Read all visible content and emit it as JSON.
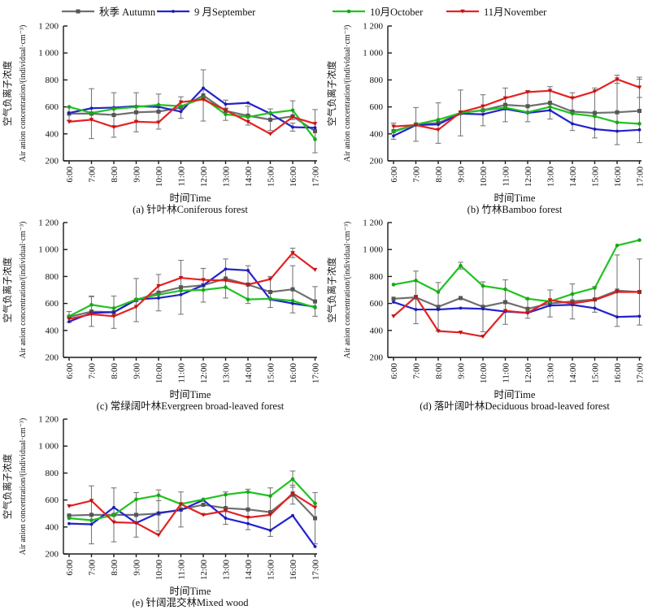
{
  "legend": {
    "items": [
      {
        "key": "autumn",
        "label": "秋季 Autumn",
        "color": "#6f6f6f",
        "marker_color": "#565656",
        "marker": "square"
      },
      {
        "key": "september",
        "label": "9 月September",
        "color": "#2323cd",
        "marker_color": "#1b1bb0",
        "marker": "dot"
      },
      {
        "key": "october",
        "label": "10月October",
        "color": "#1fc41f",
        "marker_color": "#17a817",
        "marker": "circle"
      },
      {
        "key": "november",
        "label": "11月November",
        "color": "#e32222",
        "marker_color": "#c41313",
        "marker": "triangle-down"
      }
    ]
  },
  "axes": {
    "ylabel_cn": "空气负离子浓度",
    "ylabel_en": "Air anion concentration/(individual·cm⁻³)",
    "xlabel": "时间Time",
    "ymin": 200,
    "ymax": 1200,
    "yticks": [
      {
        "label": "1 200",
        "value": 1200
      },
      {
        "label": "1 000",
        "value": 1000
      },
      {
        "label": "800",
        "value": 800
      },
      {
        "label": "600",
        "value": 600
      },
      {
        "label": "400",
        "value": 400
      },
      {
        "label": "200",
        "value": 200
      }
    ],
    "xticks": [
      "6:00",
      "7:00",
      "8:00",
      "9:00",
      "10:00",
      "11:00",
      "12:00",
      "13:00",
      "14:00",
      "15:00",
      "16:00",
      "17:00"
    ]
  },
  "chart_data": [
    {
      "id": "a",
      "type": "line",
      "title": "(a) 针叶林Coniferous forest",
      "x": [
        "6:00",
        "7:00",
        "8:00",
        "9:00",
        "10:00",
        "11:00",
        "12:00",
        "13:00",
        "14:00",
        "15:00",
        "16:00",
        "17:00"
      ],
      "ylim": [
        200,
        1200
      ],
      "series": [
        {
          "key": "autumn",
          "name": "秋季 Autumn",
          "values": [
            550,
            550,
            540,
            560,
            565,
            595,
            685,
            570,
            535,
            505,
            530,
            420
          ],
          "err": [
            50,
            185,
            165,
            145,
            130,
            80,
            190,
            0,
            70,
            80,
            0,
            160
          ]
        },
        {
          "key": "september",
          "name": "9 月September",
          "values": [
            555,
            590,
            595,
            605,
            600,
            565,
            740,
            620,
            630,
            550,
            450,
            445
          ],
          "err": [
            0,
            0,
            0,
            0,
            0,
            0,
            0,
            30,
            0,
            0,
            30,
            0
          ]
        },
        {
          "key": "october",
          "name": "10月October",
          "values": [
            600,
            555,
            585,
            600,
            615,
            605,
            665,
            545,
            525,
            555,
            575,
            360
          ],
          "err": [
            0,
            0,
            0,
            0,
            0,
            0,
            0,
            45,
            0,
            0,
            70,
            0
          ]
        },
        {
          "key": "november",
          "name": "11月November",
          "values": [
            490,
            505,
            450,
            490,
            485,
            635,
            655,
            575,
            490,
            400,
            525,
            475
          ],
          "err": [
            0,
            0,
            0,
            0,
            0,
            0,
            0,
            0,
            0,
            0,
            0,
            0
          ]
        }
      ]
    },
    {
      "id": "b",
      "type": "line",
      "title": "(b) 竹林Bamboo forest",
      "x": [
        "6:00",
        "7:00",
        "8:00",
        "9:00",
        "10:00",
        "11:00",
        "12:00",
        "13:00",
        "14:00",
        "15:00",
        "16:00",
        "17:00"
      ],
      "ylim": [
        200,
        1200
      ],
      "series": [
        {
          "key": "autumn",
          "name": "秋季 Autumn",
          "values": [
            420,
            470,
            480,
            555,
            575,
            615,
            605,
            630,
            565,
            555,
            560,
            570
          ],
          "err": [
            60,
            125,
            150,
            170,
            115,
            125,
            115,
            120,
            140,
            185,
            240,
            235
          ]
        },
        {
          "key": "september",
          "name": "9 月September",
          "values": [
            385,
            465,
            470,
            550,
            545,
            585,
            555,
            575,
            475,
            435,
            420,
            430
          ],
          "err": [
            0,
            0,
            0,
            0,
            0,
            0,
            0,
            0,
            0,
            0,
            0,
            0
          ]
        },
        {
          "key": "october",
          "name": "10月October",
          "values": [
            415,
            470,
            505,
            555,
            575,
            595,
            560,
            600,
            550,
            530,
            485,
            475
          ],
          "err": [
            0,
            0,
            0,
            0,
            0,
            0,
            0,
            0,
            0,
            0,
            0,
            0
          ]
        },
        {
          "key": "november",
          "name": "11月November",
          "values": [
            455,
            465,
            430,
            560,
            605,
            665,
            710,
            720,
            665,
            715,
            805,
            745
          ],
          "err": [
            0,
            0,
            0,
            0,
            0,
            0,
            0,
            0,
            0,
            0,
            30,
            75
          ]
        }
      ]
    },
    {
      "id": "c",
      "type": "line",
      "title": "(c) 常绿阔叶林Evergreen broad-leaved forest",
      "x": [
        "6:00",
        "7:00",
        "8:00",
        "9:00",
        "10:00",
        "11:00",
        "12:00",
        "13:00",
        "14:00",
        "15:00",
        "16:00",
        "17:00"
      ],
      "ylim": [
        200,
        1200
      ],
      "series": [
        {
          "key": "autumn",
          "name": "秋季 Autumn",
          "values": [
            500,
            540,
            535,
            625,
            680,
            720,
            735,
            785,
            740,
            685,
            705,
            615
          ],
          "err": [
            40,
            110,
            120,
            160,
            135,
            200,
            125,
            145,
            140,
            115,
            175,
            110
          ]
        },
        {
          "key": "september",
          "name": "9 月September",
          "values": [
            465,
            530,
            535,
            630,
            640,
            665,
            735,
            855,
            845,
            630,
            600,
            575
          ],
          "err": [
            0,
            0,
            0,
            0,
            0,
            0,
            0,
            0,
            0,
            0,
            0,
            0
          ]
        },
        {
          "key": "october",
          "name": "10月October",
          "values": [
            505,
            590,
            565,
            630,
            665,
            695,
            700,
            720,
            630,
            635,
            620,
            570
          ],
          "err": [
            0,
            65,
            0,
            0,
            0,
            0,
            0,
            0,
            0,
            0,
            0,
            0
          ]
        },
        {
          "key": "november",
          "name": "11月November",
          "values": [
            485,
            520,
            505,
            575,
            730,
            790,
            775,
            770,
            740,
            780,
            975,
            850
          ],
          "err": [
            0,
            0,
            0,
            0,
            0,
            0,
            0,
            0,
            0,
            0,
            35,
            0
          ]
        }
      ]
    },
    {
      "id": "d",
      "type": "line",
      "title": "(d) 落叶阔叶林Deciduous broad-leaved forest",
      "x": [
        "6:00",
        "7:00",
        "8:00",
        "9:00",
        "10:00",
        "11:00",
        "12:00",
        "13:00",
        "14:00",
        "15:00",
        "16:00",
        "17:00"
      ],
      "ylim": [
        200,
        1200
      ],
      "series": [
        {
          "key": "autumn",
          "name": "秋季 Autumn",
          "values": [
            635,
            645,
            575,
            640,
            575,
            610,
            560,
            600,
            615,
            630,
            695,
            685
          ],
          "err": [
            0,
            195,
            180,
            0,
            185,
            165,
            70,
            100,
            130,
            95,
            265,
            245
          ]
        },
        {
          "key": "september",
          "name": "9 月September",
          "values": [
            610,
            555,
            555,
            565,
            560,
            540,
            530,
            585,
            590,
            565,
            500,
            505
          ],
          "err": [
            0,
            0,
            0,
            0,
            0,
            0,
            0,
            0,
            0,
            0,
            0,
            0
          ]
        },
        {
          "key": "october",
          "name": "10月October",
          "values": [
            740,
            770,
            685,
            880,
            730,
            705,
            635,
            615,
            670,
            715,
            1030,
            1070
          ],
          "err": [
            0,
            0,
            0,
            25,
            0,
            0,
            0,
            0,
            0,
            0,
            0,
            0
          ]
        },
        {
          "key": "november",
          "name": "11月November",
          "values": [
            505,
            650,
            395,
            385,
            355,
            545,
            530,
            625,
            600,
            625,
            685,
            685
          ],
          "err": [
            0,
            0,
            0,
            0,
            0,
            0,
            0,
            0,
            0,
            0,
            0,
            0
          ]
        }
      ]
    },
    {
      "id": "e",
      "type": "line",
      "title": "(e) 针阔混交林Mixed wood",
      "x": [
        "6:00",
        "7:00",
        "8:00",
        "9:00",
        "10:00",
        "11:00",
        "12:00",
        "13:00",
        "14:00",
        "15:00",
        "16:00",
        "17:00"
      ],
      "ylim": [
        200,
        1200
      ],
      "series": [
        {
          "key": "autumn",
          "name": "秋季 Autumn",
          "values": [
            485,
            490,
            490,
            490,
            500,
            530,
            565,
            540,
            530,
            510,
            640,
            465
          ],
          "err": [
            0,
            215,
            200,
            165,
            130,
            130,
            0,
            120,
            150,
            180,
            70,
            190
          ]
        },
        {
          "key": "september",
          "name": "9 月September",
          "values": [
            425,
            420,
            545,
            430,
            505,
            525,
            600,
            465,
            425,
            375,
            485,
            255
          ],
          "err": [
            0,
            0,
            0,
            0,
            0,
            0,
            0,
            0,
            0,
            0,
            0,
            0
          ]
        },
        {
          "key": "october",
          "name": "10月October",
          "values": [
            465,
            450,
            490,
            605,
            635,
            570,
            605,
            640,
            660,
            630,
            755,
            575
          ],
          "err": [
            0,
            0,
            0,
            0,
            40,
            0,
            0,
            0,
            0,
            0,
            60,
            0
          ]
        },
        {
          "key": "november",
          "name": "11月November",
          "values": [
            555,
            595,
            435,
            430,
            340,
            570,
            490,
            520,
            470,
            490,
            650,
            545
          ],
          "err": [
            0,
            0,
            0,
            0,
            0,
            0,
            0,
            0,
            0,
            0,
            0,
            0
          ]
        }
      ]
    }
  ]
}
